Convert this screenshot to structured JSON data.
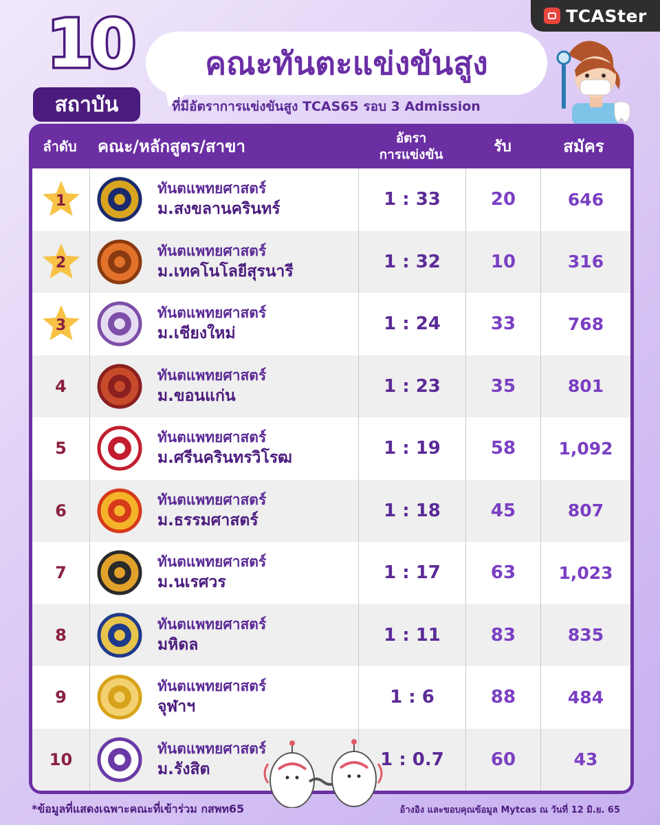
{
  "brand": {
    "name": "TCASter",
    "icon": "tcaster-logo-icon"
  },
  "header": {
    "big_number": "10",
    "badge": "สถาบัน",
    "title": "คณะทันตะแข่งขันสูง",
    "subtitle": "ที่มีอัตราการแข่งขันสูง TCAS65 รอบ 3 Admission"
  },
  "table": {
    "headers": {
      "rank": "ลำดับ",
      "faculty": "คณะ/หลักสูตร/สาขา",
      "ratio_line1": "อัตรา",
      "ratio_line2": "การแข่งขัน",
      "seats": "รับ",
      "applicants": "สมัคร"
    },
    "rows": [
      {
        "rank": "1",
        "faculty": "ทันตแพทยศาสตร์",
        "university": "ม.สงขลานครินทร์",
        "ratio": "1 : 33",
        "seats": "20",
        "applicants": "646",
        "logo": "psu-logo"
      },
      {
        "rank": "2",
        "faculty": "ทันตแพทยศาสตร์",
        "university": "ม.เทคโนโลยีสุรนารี",
        "ratio": "1 : 32",
        "seats": "10",
        "applicants": "316",
        "logo": "sut-logo"
      },
      {
        "rank": "3",
        "faculty": "ทันตแพทยศาสตร์",
        "university": "ม.เชียงใหม่",
        "ratio": "1 : 24",
        "seats": "33",
        "applicants": "768",
        "logo": "cmu-logo"
      },
      {
        "rank": "4",
        "faculty": "ทันตแพทยศาสตร์",
        "university": "ม.ขอนแก่น",
        "ratio": "1 : 23",
        "seats": "35",
        "applicants": "801",
        "logo": "kku-logo"
      },
      {
        "rank": "5",
        "faculty": "ทันตแพทยศาสตร์",
        "university": "ม.ศรีนครินทรวิโรฒ",
        "ratio": "1 : 19",
        "seats": "58",
        "applicants": "1,092",
        "logo": "swu-logo"
      },
      {
        "rank": "6",
        "faculty": "ทันตแพทยศาสตร์",
        "university": "ม.ธรรมศาสตร์",
        "ratio": "1 : 18",
        "seats": "45",
        "applicants": "807",
        "logo": "tu-logo"
      },
      {
        "rank": "7",
        "faculty": "ทันตแพทยศาสตร์",
        "university": "ม.นเรศวร",
        "ratio": "1 : 17",
        "seats": "63",
        "applicants": "1,023",
        "logo": "nu-logo"
      },
      {
        "rank": "8",
        "faculty": "ทันตแพทยศาสตร์",
        "university": "มหิดล",
        "ratio": "1 : 11",
        "seats": "83",
        "applicants": "835",
        "logo": "mahidol-logo"
      },
      {
        "rank": "9",
        "faculty": "ทันตแพทยศาสตร์",
        "university": "จุฬาฯ",
        "ratio": "1 : 6",
        "seats": "88",
        "applicants": "484",
        "logo": "chula-logo"
      },
      {
        "rank": "10",
        "faculty": "ทันตแพทยศาสตร์",
        "university": "ม.รังสิต",
        "ratio": "1 : 0.7",
        "seats": "60",
        "applicants": "43",
        "logo": "rangsit-logo"
      }
    ]
  },
  "footer": {
    "note": "*ข้อมูลที่แสดงเฉพาะคณะที่เข้าร่วม กสพท65",
    "credit": "อ้างอิง และขอบคุณข้อมูล Mytcas ณ วันที่ 12 มิ.ย. 65"
  },
  "colors": {
    "primary": "#6b2fa3",
    "dark": "#4b1c7e",
    "star": "#f7c246",
    "rank": "#8a2040"
  }
}
